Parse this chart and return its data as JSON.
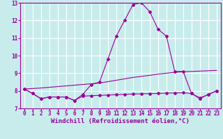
{
  "x": [
    0,
    1,
    2,
    3,
    4,
    5,
    6,
    7,
    8,
    9,
    10,
    11,
    12,
    13,
    14,
    15,
    16,
    17,
    18,
    19,
    20,
    21,
    22,
    23
  ],
  "line1": [
    8.1,
    7.85,
    7.55,
    7.65,
    7.65,
    7.65,
    7.45,
    7.8,
    8.35,
    8.5,
    9.8,
    11.1,
    12.0,
    12.9,
    13.0,
    12.5,
    11.5,
    11.1,
    9.1,
    9.1,
    7.85,
    7.55,
    7.8,
    8.0
  ],
  "line2": [
    8.1,
    8.13,
    8.16,
    8.2,
    8.24,
    8.28,
    8.32,
    8.36,
    8.4,
    8.44,
    8.52,
    8.6,
    8.68,
    8.76,
    8.82,
    8.88,
    8.95,
    9.0,
    9.05,
    9.08,
    9.1,
    9.12,
    9.14,
    9.16
  ],
  "line3": [
    8.1,
    7.85,
    7.55,
    7.65,
    7.65,
    7.65,
    7.45,
    7.7,
    7.72,
    7.74,
    7.76,
    7.78,
    7.8,
    7.82,
    7.83,
    7.84,
    7.85,
    7.87,
    7.88,
    7.89,
    7.85,
    7.6,
    7.78,
    8.0
  ],
  "ylim": [
    7,
    13
  ],
  "xlim_min": -0.5,
  "xlim_max": 23.5,
  "yticks": [
    7,
    8,
    9,
    10,
    11,
    12,
    13
  ],
  "xticks": [
    0,
    1,
    2,
    3,
    4,
    5,
    6,
    7,
    8,
    9,
    10,
    11,
    12,
    13,
    14,
    15,
    16,
    17,
    18,
    19,
    20,
    21,
    22,
    23
  ],
  "xlabel": "Windchill (Refroidissement éolien,°C)",
  "line_color": "#990099",
  "bg_color": "#c8ecec",
  "grid_color": "#ffffff",
  "tick_fontsize": 5.5,
  "xlabel_fontsize": 6.5
}
